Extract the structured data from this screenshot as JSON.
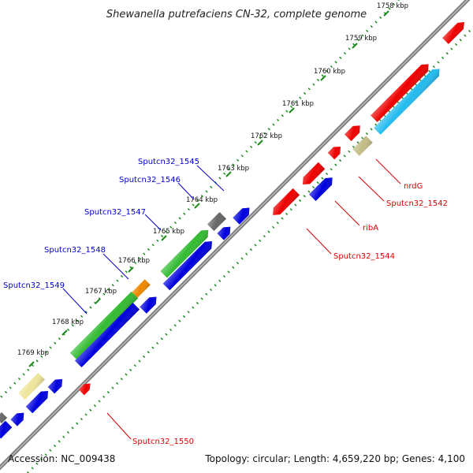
{
  "title": "Shewanella putrefaciens CN-32, complete genome",
  "footer": {
    "accession": "Accession: NC_009438",
    "summary": "Topology: circular; Length: 4,659,220 bp; Genes: 4,100"
  },
  "colors": {
    "backbone": "#7f7f7f",
    "tick": "#1a8a1a",
    "label_reverse": "#0000cc",
    "label_forward": "#dd0000",
    "red": "#ee0000",
    "blue": "#0000dd",
    "green": "#33bb33",
    "cyan": "#22bbee",
    "khaki": "#c2bc86",
    "lightkhaki": "#efe49a",
    "gray": "#666666",
    "orange": "#ee8800"
  },
  "ticks": [
    {
      "label": "1758 kbp"
    },
    {
      "label": "1759 kbp"
    },
    {
      "label": "1760 kbp"
    },
    {
      "label": "1761 kbp"
    },
    {
      "label": "1762 kbp"
    },
    {
      "label": "1763 kbp"
    },
    {
      "label": "1764 kbp"
    },
    {
      "label": "1765 kbp"
    },
    {
      "label": "1766 kbp"
    },
    {
      "label": "1767 kbp"
    },
    {
      "label": "1768 kbp"
    },
    {
      "label": "1769 kbp"
    }
  ],
  "gene_labels": {
    "reverse": [
      "Sputcn32_1545",
      "Sputcn32_1546",
      "Sputcn32_1547",
      "Sputcn32_1548",
      "Sputcn32_1549"
    ],
    "forward": [
      "nrdG",
      "Sputcn32_1542",
      "ribA",
      "Sputcn32_1544",
      "Sputcn32_1550"
    ]
  }
}
